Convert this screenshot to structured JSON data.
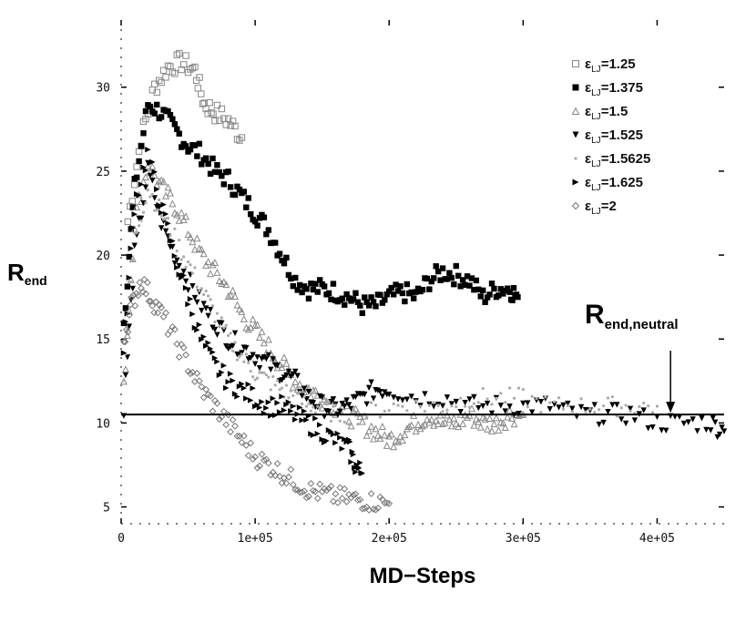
{
  "chart_data": {
    "type": "scatter",
    "xlabel": "MD−Steps",
    "ylabel_main": "R",
    "ylabel_sub": "end",
    "xlim": [
      0,
      450000
    ],
    "ylim": [
      4,
      34
    ],
    "x_ticks": [
      0,
      100000,
      200000,
      300000,
      400000
    ],
    "x_tick_labels": [
      "0",
      "1e+05",
      "2e+05",
      "3e+05",
      "4e+05"
    ],
    "y_ticks": [
      5,
      10,
      15,
      20,
      25,
      30
    ],
    "y_tick_labels": [
      "5",
      "10",
      "15",
      "20",
      "25",
      "30"
    ],
    "grid": false,
    "legend_position": "top-right",
    "legend_prefix": "ε",
    "legend_prefix_sub": "LJ",
    "series": [
      {
        "name": "=1.25",
        "marker": "square-open",
        "color": "#888888",
        "peak_y": 31.5,
        "peak_x": 45000,
        "end_x": 60000,
        "end_y": 30,
        "points": [
          [
            5000,
            22
          ],
          [
            15000,
            27
          ],
          [
            25000,
            30
          ],
          [
            35000,
            31.2
          ],
          [
            45000,
            31.5
          ],
          [
            55000,
            31
          ],
          [
            62000,
            29
          ],
          [
            70000,
            28.5
          ],
          [
            80000,
            28
          ],
          [
            90000,
            27
          ]
        ]
      },
      {
        "name": "=1.375",
        "marker": "square-filled",
        "color": "#000000",
        "points": [
          [
            2000,
            16
          ],
          [
            10000,
            24
          ],
          [
            20000,
            29
          ],
          [
            30000,
            28.5
          ],
          [
            40000,
            27.5
          ],
          [
            50000,
            26.5
          ],
          [
            60000,
            26
          ],
          [
            70000,
            25
          ],
          [
            80000,
            24.5
          ],
          [
            90000,
            23.5
          ],
          [
            100000,
            22.5
          ],
          [
            110000,
            21.5
          ],
          [
            120000,
            20
          ],
          [
            130000,
            18.5
          ],
          [
            140000,
            18
          ],
          [
            150000,
            18
          ],
          [
            160000,
            17.8
          ],
          [
            170000,
            17.5
          ],
          [
            180000,
            17
          ],
          [
            190000,
            17
          ],
          [
            200000,
            17.5
          ],
          [
            210000,
            17.8
          ],
          [
            220000,
            17.5
          ],
          [
            230000,
            18.5
          ],
          [
            240000,
            19
          ],
          [
            250000,
            18.8
          ],
          [
            260000,
            18.5
          ],
          [
            270000,
            17.5
          ],
          [
            280000,
            18
          ],
          [
            290000,
            18
          ],
          [
            296000,
            17.5
          ]
        ]
      },
      {
        "name": "=1.5",
        "marker": "triangle-open",
        "color": "#888888",
        "points": [
          [
            2000,
            12
          ],
          [
            10000,
            22
          ],
          [
            20000,
            25.5
          ],
          [
            30000,
            24
          ],
          [
            40000,
            23
          ],
          [
            50000,
            21.5
          ],
          [
            60000,
            20
          ],
          [
            70000,
            19
          ],
          [
            80000,
            18
          ],
          [
            90000,
            16.5
          ],
          [
            100000,
            15.5
          ],
          [
            110000,
            14.5
          ],
          [
            120000,
            13.5
          ],
          [
            130000,
            12.5
          ],
          [
            140000,
            12
          ],
          [
            150000,
            11.5
          ],
          [
            160000,
            11
          ],
          [
            170000,
            10.5
          ],
          [
            180000,
            10
          ],
          [
            190000,
            9.5
          ],
          [
            200000,
            9
          ],
          [
            210000,
            9.5
          ],
          [
            220000,
            10
          ],
          [
            230000,
            10.5
          ],
          [
            240000,
            10
          ],
          [
            250000,
            10
          ],
          [
            260000,
            10.5
          ],
          [
            270000,
            10
          ],
          [
            280000,
            10
          ],
          [
            290000,
            10.5
          ],
          [
            300000,
            10.5
          ]
        ]
      },
      {
        "name": "=1.525",
        "marker": "triangle-down-filled",
        "color": "#000000",
        "points": [
          [
            2000,
            11
          ],
          [
            10000,
            20
          ],
          [
            20000,
            25
          ],
          [
            30000,
            22
          ],
          [
            40000,
            20
          ],
          [
            50000,
            18.5
          ],
          [
            60000,
            17
          ],
          [
            70000,
            16
          ],
          [
            80000,
            15
          ],
          [
            90000,
            14.5
          ],
          [
            100000,
            14
          ],
          [
            110000,
            13.5
          ],
          [
            120000,
            13
          ],
          [
            130000,
            12.5
          ],
          [
            140000,
            11.5
          ],
          [
            150000,
            11
          ],
          [
            160000,
            10.8
          ],
          [
            170000,
            11
          ],
          [
            180000,
            11.5
          ],
          [
            190000,
            12
          ],
          [
            200000,
            12
          ],
          [
            220000,
            11.5
          ],
          [
            240000,
            11.5
          ],
          [
            260000,
            11
          ],
          [
            280000,
            11
          ],
          [
            300000,
            11
          ],
          [
            320000,
            11
          ],
          [
            340000,
            10.5
          ],
          [
            360000,
            10.5
          ],
          [
            380000,
            10.5
          ],
          [
            400000,
            10
          ],
          [
            420000,
            10
          ],
          [
            440000,
            10
          ],
          [
            450000,
            9.5
          ]
        ]
      },
      {
        "name": "=1.5625",
        "marker": "dot-small",
        "color": "#aaaaaa",
        "points": [
          [
            2000,
            13
          ],
          [
            10000,
            21
          ],
          [
            20000,
            24
          ],
          [
            30000,
            22.5
          ],
          [
            40000,
            21
          ],
          [
            50000,
            19.5
          ],
          [
            60000,
            18
          ],
          [
            70000,
            16.5
          ],
          [
            80000,
            15
          ],
          [
            90000,
            14
          ],
          [
            100000,
            13
          ],
          [
            110000,
            12.5
          ],
          [
            120000,
            12
          ],
          [
            130000,
            11.5
          ],
          [
            140000,
            11
          ],
          [
            150000,
            11
          ],
          [
            160000,
            10.5
          ],
          [
            180000,
            10.5
          ],
          [
            200000,
            11
          ],
          [
            220000,
            11
          ],
          [
            240000,
            11
          ],
          [
            260000,
            11.5
          ],
          [
            280000,
            11.5
          ],
          [
            300000,
            11.5
          ],
          [
            320000,
            11
          ],
          [
            340000,
            11
          ],
          [
            360000,
            11
          ],
          [
            380000,
            11
          ],
          [
            400000,
            11
          ]
        ]
      },
      {
        "name": "=1.625",
        "marker": "triangle-right-filled",
        "color": "#000000",
        "points": [
          [
            2000,
            14
          ],
          [
            10000,
            23
          ],
          [
            20000,
            26
          ],
          [
            30000,
            23
          ],
          [
            40000,
            20
          ],
          [
            50000,
            17.5
          ],
          [
            60000,
            15
          ],
          [
            70000,
            13.5
          ],
          [
            80000,
            12.5
          ],
          [
            90000,
            12
          ],
          [
            100000,
            11.5
          ],
          [
            110000,
            11
          ],
          [
            120000,
            11
          ],
          [
            130000,
            10.5
          ],
          [
            140000,
            10
          ],
          [
            150000,
            9.5
          ],
          [
            160000,
            9
          ],
          [
            170000,
            8.5
          ],
          [
            175000,
            7.5
          ],
          [
            180000,
            7
          ]
        ]
      },
      {
        "name": "=2",
        "marker": "diamond-open",
        "color": "#777777",
        "points": [
          [
            2000,
            15
          ],
          [
            8000,
            17
          ],
          [
            15000,
            18.5
          ],
          [
            22000,
            17.5
          ],
          [
            30000,
            16.5
          ],
          [
            40000,
            15
          ],
          [
            50000,
            13.5
          ],
          [
            60000,
            12
          ],
          [
            70000,
            11
          ],
          [
            80000,
            10
          ],
          [
            90000,
            9
          ],
          [
            100000,
            8
          ],
          [
            110000,
            7.5
          ],
          [
            120000,
            7
          ],
          [
            130000,
            6.5
          ],
          [
            140000,
            6
          ],
          [
            150000,
            5.8
          ],
          [
            160000,
            5.6
          ],
          [
            170000,
            5.5
          ],
          [
            180000,
            5.4
          ],
          [
            190000,
            5.3
          ],
          [
            200000,
            5.2
          ]
        ]
      }
    ],
    "reference_line": {
      "y": 10.5
    },
    "annotation": {
      "text_main": "R",
      "text_sub": "end,neutral",
      "arrow_x": 410000,
      "arrow_y": 10.5
    }
  }
}
